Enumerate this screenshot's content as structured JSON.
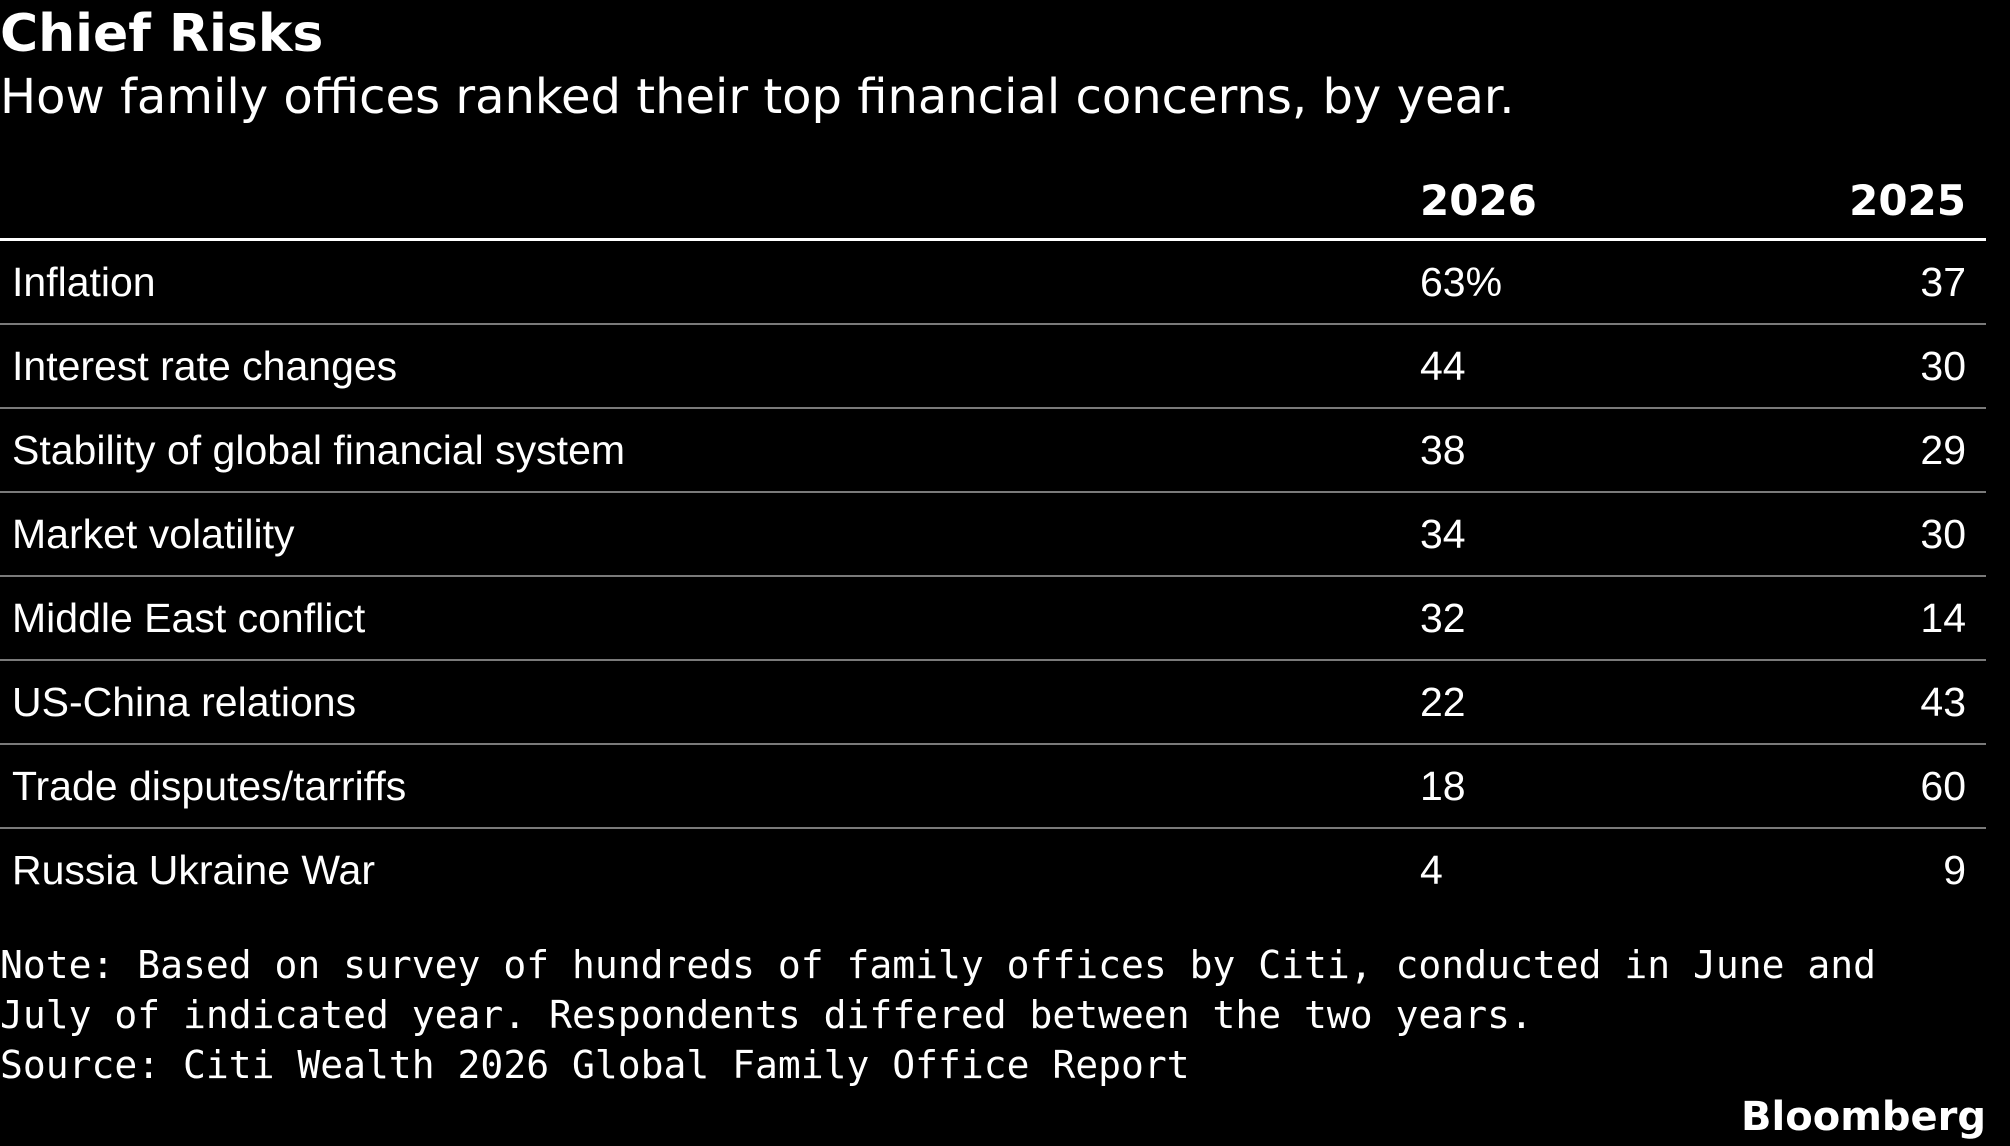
{
  "header": {
    "title": "Chief Risks",
    "subtitle": "How family offices ranked their top financial concerns, by year."
  },
  "chart_data": {
    "type": "table",
    "title": "Chief Risks",
    "subtitle": "How family offices ranked their top financial concerns, by year.",
    "columns": [
      "",
      "2026",
      "2025"
    ],
    "rows": [
      {
        "label": "Inflation",
        "v2026": "63%",
        "v2025": "37"
      },
      {
        "label": "Interest rate changes",
        "v2026": "44",
        "v2025": "30"
      },
      {
        "label": "Stability of global financial system",
        "v2026": "38",
        "v2025": "29"
      },
      {
        "label": "Market volatility",
        "v2026": "34",
        "v2025": "30"
      },
      {
        "label": "Middle East conflict",
        "v2026": "32",
        "v2025": "14"
      },
      {
        "label": "US-China relations",
        "v2026": "22",
        "v2025": "43"
      },
      {
        "label": "Trade disputes/tarriffs",
        "v2026": "18",
        "v2025": "60"
      },
      {
        "label": "Russia Ukraine War",
        "v2026": "4",
        "v2025": "9"
      }
    ]
  },
  "footer": {
    "note": "Note: Based on survey of hundreds of family offices by Citi, conducted in June and July of indicated year. Respondents differed between the two years.",
    "source": "Source: Citi Wealth 2026 Global Family Office Report",
    "brand": "Bloomberg"
  },
  "colors": {
    "background": "#000000",
    "text": "#ffffff",
    "divider": "#7a7a7a"
  }
}
